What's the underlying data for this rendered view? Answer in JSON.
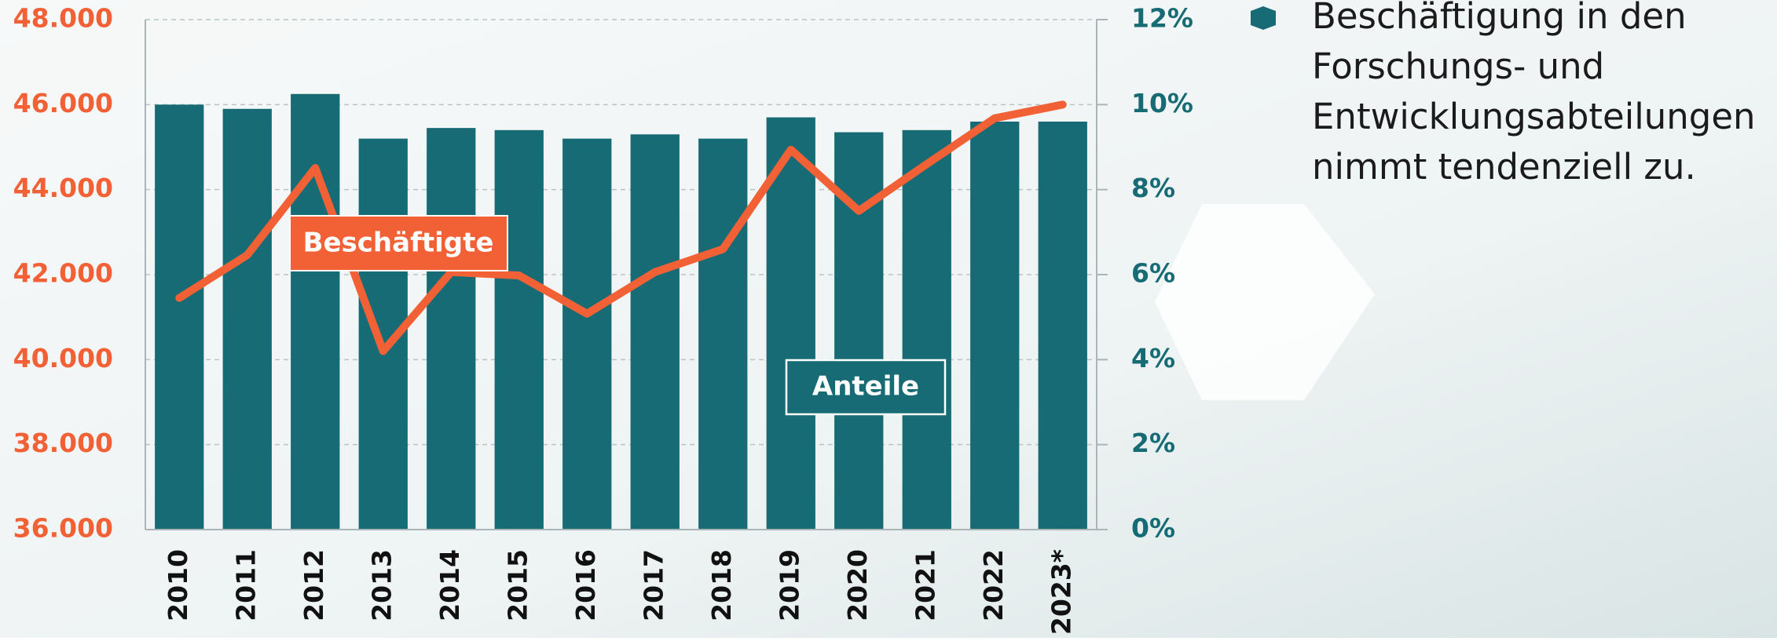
{
  "chart_data": {
    "type": "bar_line",
    "categories": [
      "2010",
      "2011",
      "2012",
      "2013",
      "2014",
      "2015",
      "2016",
      "2017",
      "2018",
      "2019",
      "2020",
      "2021",
      "2022",
      "2023*"
    ],
    "series": [
      {
        "name": "Anteile",
        "type": "bar",
        "axis": "y2",
        "color": "#176b75",
        "values": [
          10.0,
          9.9,
          10.25,
          9.2,
          9.45,
          9.4,
          9.2,
          9.3,
          9.2,
          9.7,
          9.35,
          9.4,
          9.6,
          9.6
        ]
      },
      {
        "name": "Beschäftigte",
        "type": "line",
        "axis": "y",
        "color": "#f26135",
        "values": [
          41450,
          42460,
          44510,
          40200,
          42060,
          41980,
          41080,
          42060,
          42600,
          44940,
          43500,
          44600,
          45680,
          46000
        ]
      }
    ],
    "ylim": [
      36000,
      48000
    ],
    "yticks": [
      {
        "value": 36000,
        "label": "36.000"
      },
      {
        "value": 38000,
        "label": "38.000"
      },
      {
        "value": 40000,
        "label": "40.000"
      },
      {
        "value": 42000,
        "label": "42.000"
      },
      {
        "value": 44000,
        "label": "44.000"
      },
      {
        "value": 46000,
        "label": "46.000"
      },
      {
        "value": 48000,
        "label": "48.000"
      }
    ],
    "y2lim": [
      0,
      12
    ],
    "y2ticks": [
      {
        "value": 0,
        "label": "0%"
      },
      {
        "value": 2,
        "label": "2%"
      },
      {
        "value": 4,
        "label": "4%"
      },
      {
        "value": 6,
        "label": "6%"
      },
      {
        "value": 8,
        "label": "8%"
      },
      {
        "value": 10,
        "label": "10%"
      },
      {
        "value": 12,
        "label": "12%"
      }
    ],
    "grid": true,
    "annotation_lines": [
      "Beschäftigung in den",
      "Forschungs- und",
      "Entwicklungsabteilungen",
      "nimmt tendenziell zu."
    ]
  }
}
